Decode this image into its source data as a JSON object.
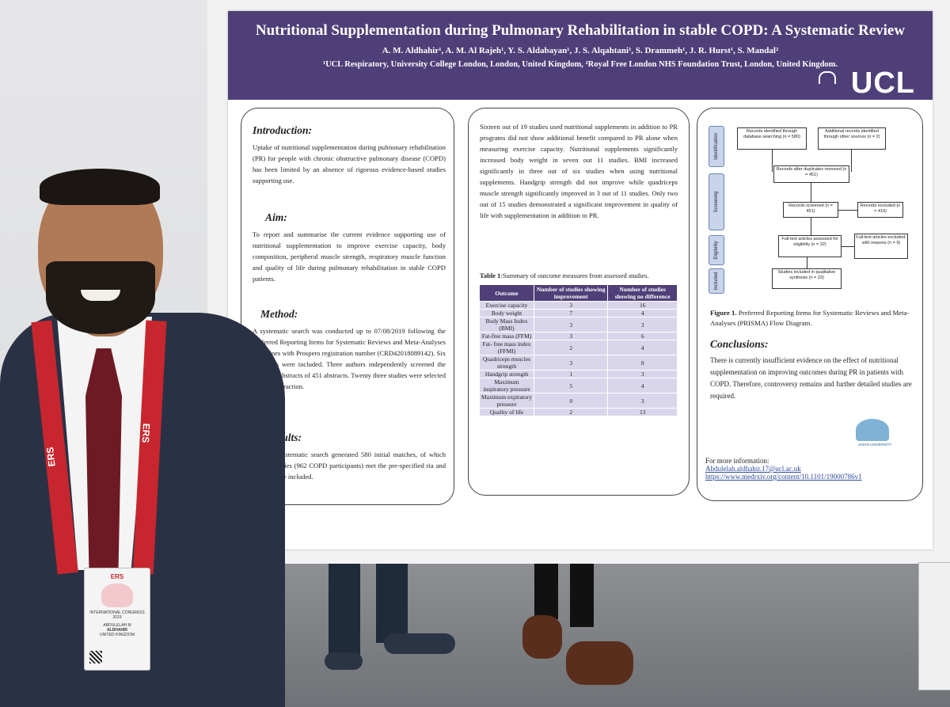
{
  "poster": {
    "title": "Nutritional Supplementation during Pulmonary Rehabilitation in stable COPD: A Systematic Review",
    "authors": "A. M. Aldhahir¹, A. M. Al Rajeh¹, Y. S. Aldabayan¹, J. S. Alqahtani¹, S. Drammeh¹, J. R. Hurst¹, S. Mandal²",
    "affiliations": "¹UCL Respiratory, University College London, London, United Kingdom, ²Royal Free London NHS Foundation Trust, London, United Kingdom.",
    "logo_text": "UCL",
    "accent_color": "#4f3f78",
    "introduction": {
      "heading": "Introduction:",
      "text": "Uptake of nutritional supplementation during pulmonary rehabilitation (PR) for people with chronic obstructive pulmonary disease (COPD) has been limited by an absence of rigorous evidence-based studies supporting use."
    },
    "aim": {
      "heading": "Aim:",
      "text": "To report and summarise the current evidence supporting use of nutritional supplementation to improve exercise capacity, body composition, peripheral muscle strength, respiratory muscle function and quality of life during pulmonary rehabilitation in stable COPD patients."
    },
    "method": {
      "heading": "Method:",
      "text": "A systematic search was conducted up to 07/08/2019 following the Preferred Reporting Items for Systematic Reviews and Meta-Analyses guidelines with Prospero registration number (CRD42018089142). Six databases were included. Three authors independently screened the titles and abstracts of 451 abstracts. Twenty three studies were selected for data extraction."
    },
    "results": {
      "heading": "esults:",
      "text": "e systematic search generated 580 initial matches, of which studies (962 COPD participants) met the pre-specified ria and were included."
    },
    "middle_text": "Sixteen out of 19 studies used nutritional supplements in addition to PR programs did not show additional benefit compared to PR alone when measuring exercise capacity. Nutritional supplements significantly increased body weight in seven out 11 studies. BMI increased significantly in three out of six studies when using nutritional supplements. Handgrip strength did not improve while quadriceps muscle strength significantly improved in 3 out of 11 studies. Only two out of 15 studies demonstrated a significant improvement in quality of life with supplementation in addition to PR.",
    "table": {
      "caption_bold": "Table 1",
      "caption": ":Summary of outcome measures from assessed studies.",
      "headers": [
        "Outcome",
        "Number of studies showing improvement",
        "Number of studies showing no difference"
      ],
      "rows": [
        [
          "Exercise capacity",
          "3",
          "16"
        ],
        [
          "Body weight",
          "7",
          "4"
        ],
        [
          "Body Mass Index (BMI)",
          "3",
          "3"
        ],
        [
          "Fat-free mass (FFM)",
          "3",
          "6"
        ],
        [
          "Fat- free mass index (FFMI)",
          "2",
          "4"
        ],
        [
          "Quadriceps muscles strength",
          "3",
          "8"
        ],
        [
          "Handgrip strength",
          "1",
          "3"
        ],
        [
          "Maximum inspiratory pressure",
          "5",
          "4"
        ],
        [
          "Maximum expiratory pressure",
          "0",
          "3"
        ],
        [
          "Quality of life",
          "2",
          "13"
        ]
      ]
    },
    "prisma": {
      "stages": [
        "Identification",
        "Screening",
        "Eligibility",
        "Included"
      ],
      "boxes": {
        "identified": "Records identified through database searching (n = 580)",
        "additional": "Additional records identified through other sources (n = 2)",
        "after_duplicates": "Records after duplicates removed (n = 451)",
        "screened": "Records screened (n = 451)",
        "excluded": "Records excluded (n = 419)",
        "fulltext": "Full-text articles assessed for eligibility (n = 32)",
        "fulltext_excluded": "Full-text articles excluded, with reasons (n = 9)",
        "included": "Studies included in qualitative synthesis (n = 23)"
      },
      "caption_bold": "Figure 1.",
      "caption": " Preferred Reporting Items for  Systematic Reviews and Meta-Analyses (PRISMA) Flow Diagram."
    },
    "conclusions": {
      "heading": "Conclusions:",
      "text": "There is currently insufficient evidence on the effect of nutritional supplementation on improving outcomes during PR in patients with COPD. Therefore, controversy remains and further detailed studies are required."
    },
    "more_info": {
      "label": "For more information:",
      "email": "Abdulelah.aldhahir.17@ucl.ac.uk",
      "url": "https://www.medrxiv.org/content/10.1101/19000786v1"
    },
    "jazan_logo_text": "JAZAN UNIVERSITY"
  },
  "lanyard": {
    "text": "ERS",
    "color": "#c8262e"
  },
  "badge": {
    "brand": "ERS",
    "event": "INTERNATIONAL CONGRESS 2019",
    "name_line1": "ABDULELAH M",
    "name_line2": "ALDHAHIR",
    "location": "UNITED KINGDOM"
  }
}
